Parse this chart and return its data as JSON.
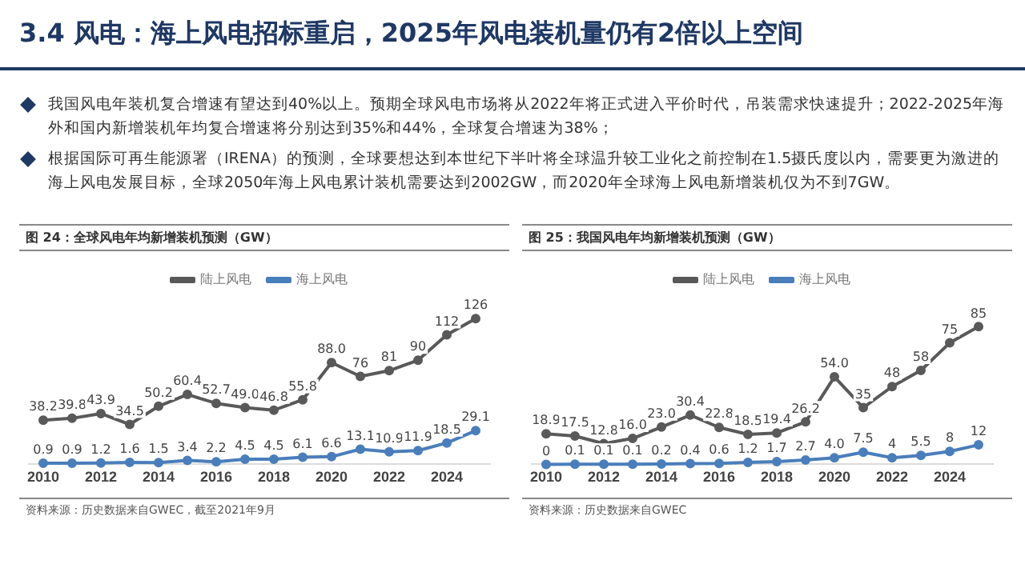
{
  "chart_data": [
    {
      "type": "other",
      "title": "3.4 风电：海上风电招标重启，2025年风电装机量仍有2倍以上空间",
      "annotations": [
        "我国风电年装机复合增速有望达到40%以上。预期全球风电市场将从2022年将正式进入平价时代，吊装需求快速提升；2022-2025年海外和国内新增装机年均复合增速将分别达到35%和44%，全球复合增速为38%；",
        "根据国际可再生能源署（IRENA）的预测，全球要想达到本世纪下半叶将全球温升较工业化之前控制在1.5摄氏度以内，需要更为激进的海上风电发展目标，全球2050年海上风电累计装机需要达到2002GW，而2020年全球海上风电新增装机仅为不到7GW。"
      ]
    },
    {
      "type": "line",
      "title": "图 24：全球风电年均新增装机预测（GW）",
      "x": [
        2010,
        2011,
        2012,
        2013,
        2014,
        2015,
        2016,
        2017,
        2018,
        2019,
        2020,
        2021,
        2022,
        2023,
        2024,
        2025
      ],
      "xlim": [
        2009.5,
        2025.5
      ],
      "xticks": [
        2010,
        2012,
        2014,
        2016,
        2018,
        2020,
        2022,
        2024
      ],
      "legend": "top",
      "marker": "circle",
      "annotations": [
        "资料来源：历史数据来自GWEC，截至2021年9月"
      ],
      "series": [
        {
          "name": "陆上风电",
          "color": "#595959",
          "values": [
            38.2,
            39.8,
            43.9,
            34.5,
            50.2,
            60.4,
            52.7,
            49.0,
            46.8,
            55.8,
            88.0,
            76,
            81,
            90,
            112,
            126
          ],
          "value_labels": [
            "38.2",
            "39.8",
            "43.9",
            "34.5",
            "50.2",
            "60.4",
            "52.7",
            "49.0",
            "46.8",
            "55.8",
            "88.0",
            "76",
            "81",
            "90",
            "112",
            "126"
          ]
        },
        {
          "name": "海上风电",
          "color": "#4a7ebb",
          "values": [
            0.9,
            0.9,
            1.2,
            1.6,
            1.5,
            3.4,
            2.2,
            4.5,
            4.5,
            6.1,
            6.6,
            13.1,
            10.9,
            11.9,
            18.5,
            29.1
          ],
          "value_labels": [
            "0.9",
            "0.9",
            "1.2",
            "1.6",
            "1.5",
            "3.4",
            "2.2",
            "4.5",
            "4.5",
            "6.1",
            "6.6",
            "13.1",
            "10.9",
            "11.9",
            "18.5",
            "29.1"
          ]
        }
      ]
    },
    {
      "type": "line",
      "title": "图 25：我国风电年均新增装机预测（GW）",
      "x": [
        2010,
        2011,
        2012,
        2013,
        2014,
        2015,
        2016,
        2017,
        2018,
        2019,
        2020,
        2021,
        2022,
        2023,
        2024,
        2025
      ],
      "xlim": [
        2009.5,
        2025.5
      ],
      "xticks": [
        2010,
        2012,
        2014,
        2016,
        2018,
        2020,
        2022,
        2024
      ],
      "legend": "top",
      "marker": "circle",
      "annotations": [
        "资料来源：历史数据来自GWEC"
      ],
      "series": [
        {
          "name": "陆上风电",
          "color": "#595959",
          "values": [
            18.9,
            17.5,
            12.8,
            16.0,
            23.0,
            30.4,
            22.8,
            18.5,
            19.4,
            26.2,
            54.0,
            35,
            48,
            58,
            75,
            85
          ],
          "value_labels": [
            "18.9",
            "17.5",
            "12.8",
            "16.0",
            "23.0",
            "30.4",
            "22.8",
            "18.5",
            "19.4",
            "26.2",
            "54.0",
            "35",
            "48",
            "58",
            "75",
            "85"
          ]
        },
        {
          "name": "海上风电",
          "color": "#4a7ebb",
          "values": [
            0,
            0.1,
            0.1,
            0.1,
            0.2,
            0.4,
            0.6,
            1.2,
            1.7,
            2.7,
            4.0,
            7.5,
            4,
            5.5,
            8,
            12
          ],
          "value_labels": [
            "0",
            "0.1",
            "0.1",
            "0.1",
            "0.2",
            "0.4",
            "0.6",
            "1.2",
            "1.7",
            "2.7",
            "4.0",
            "7.5",
            "4",
            "5.5",
            "8",
            "12"
          ]
        }
      ]
    }
  ]
}
